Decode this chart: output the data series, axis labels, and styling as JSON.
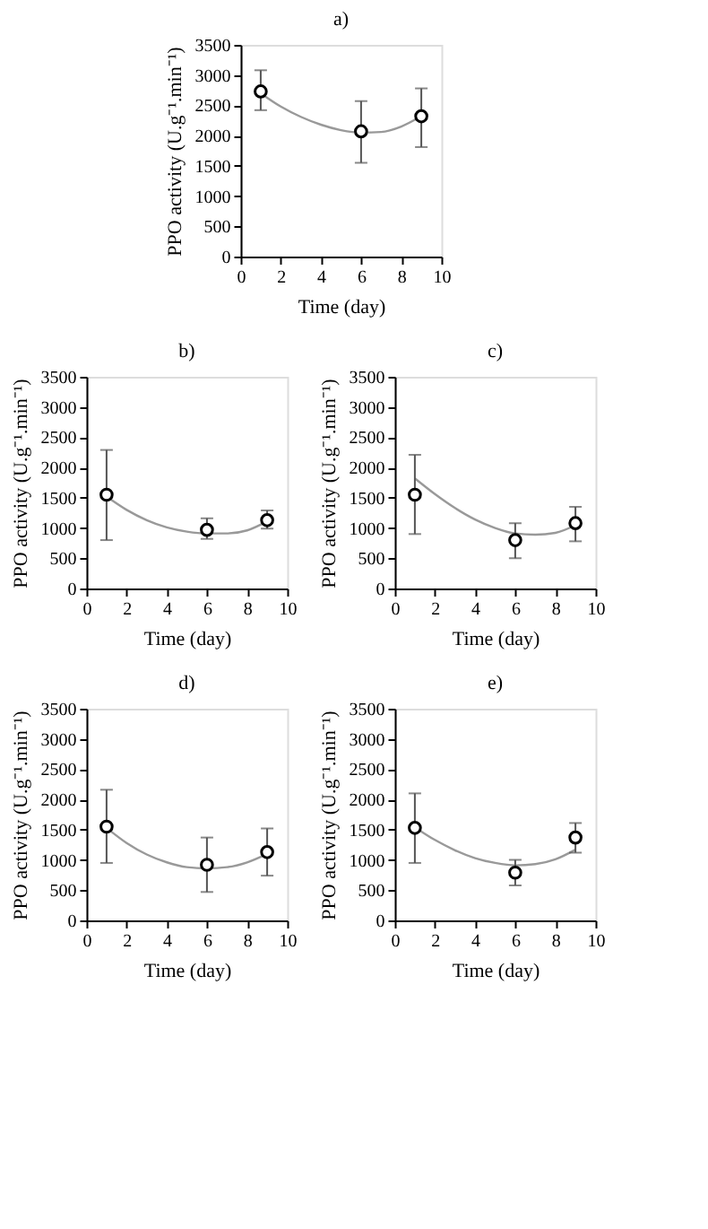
{
  "chart_data": [
    {
      "type": "scatter",
      "title": "a)",
      "xlabel": "Time (day)",
      "ylabel": "PPO activity (U.g⁻¹.min⁻¹)",
      "xlim": [
        0,
        10
      ],
      "xticks": [
        0,
        2,
        4,
        6,
        8,
        10
      ],
      "ylim": [
        0,
        3500
      ],
      "yticks": [
        0,
        500,
        1000,
        1500,
        2000,
        2500,
        3000,
        3500
      ],
      "grid": false,
      "marker": "circle",
      "series": [
        {
          "color": "#000000",
          "x": [
            1,
            6,
            9
          ],
          "values": [
            2730,
            2070,
            2320
          ],
          "errors": [
            [
              2420,
              3080
            ],
            [
              1550,
              2570
            ],
            [
              1810,
              2780
            ]
          ]
        },
        {
          "type": "line",
          "color": "#999999",
          "marker": "none",
          "line_style": "solid",
          "x": [
            1,
            2,
            3,
            4,
            5,
            6,
            7,
            8,
            9
          ],
          "values": [
            2700,
            2480,
            2310,
            2180,
            2090,
            2050,
            2060,
            2150,
            2320
          ]
        }
      ]
    },
    {
      "type": "scatter",
      "title": "b)",
      "xlabel": "Time (day)",
      "ylabel": "PPO activity (U.g⁻¹.min⁻¹)",
      "xlim": [
        0,
        10
      ],
      "xticks": [
        0,
        2,
        4,
        6,
        8,
        10
      ],
      "ylim": [
        0,
        3500
      ],
      "yticks": [
        0,
        500,
        1000,
        1500,
        2000,
        2500,
        3000,
        3500
      ],
      "grid": false,
      "marker": "circle",
      "series": [
        {
          "color": "#000000",
          "x": [
            1,
            6,
            9
          ],
          "values": [
            1550,
            970,
            1130
          ],
          "errors": [
            [
              800,
              2290
            ],
            [
              820,
              1160
            ],
            [
              990,
              1290
            ]
          ]
        },
        {
          "type": "line",
          "color": "#999999",
          "marker": "none",
          "line_style": "solid",
          "x": [
            1,
            2,
            3,
            4,
            5,
            6,
            7,
            8,
            9
          ],
          "values": [
            1520,
            1300,
            1130,
            1010,
            940,
            910,
            910,
            960,
            1110
          ]
        }
      ]
    },
    {
      "type": "scatter",
      "title": "c)",
      "xlabel": "Time (day)",
      "ylabel": "PPO activity (U.g⁻¹.min⁻¹)",
      "xlim": [
        0,
        10
      ],
      "xticks": [
        0,
        2,
        4,
        6,
        8,
        10
      ],
      "ylim": [
        0,
        3500
      ],
      "yticks": [
        0,
        500,
        1000,
        1500,
        2000,
        2500,
        3000,
        3500
      ],
      "grid": false,
      "marker": "circle",
      "series": [
        {
          "color": "#000000",
          "x": [
            1,
            6,
            9
          ],
          "values": [
            1550,
            800,
            1080
          ],
          "errors": [
            [
              900,
              2210
            ],
            [
              500,
              1080
            ],
            [
              780,
              1350
            ]
          ]
        },
        {
          "type": "line",
          "color": "#999999",
          "marker": "none",
          "line_style": "solid",
          "x": [
            1,
            2,
            3,
            4,
            5,
            6,
            7,
            8,
            9
          ],
          "values": [
            1820,
            1560,
            1330,
            1140,
            1000,
            910,
            890,
            920,
            1050
          ]
        }
      ]
    },
    {
      "type": "scatter",
      "title": "d)",
      "xlabel": "Time (day)",
      "ylabel": "PPO activity (U.g⁻¹.min⁻¹)",
      "xlim": [
        0,
        10
      ],
      "xticks": [
        0,
        2,
        4,
        6,
        8,
        10
      ],
      "ylim": [
        0,
        3500
      ],
      "yticks": [
        0,
        500,
        1000,
        1500,
        2000,
        2500,
        3000,
        3500
      ],
      "grid": false,
      "marker": "circle",
      "series": [
        {
          "color": "#000000",
          "x": [
            1,
            6,
            9
          ],
          "values": [
            1550,
            920,
            1130
          ],
          "errors": [
            [
              950,
              2160
            ],
            [
              470,
              1370
            ],
            [
              740,
              1520
            ]
          ]
        },
        {
          "type": "line",
          "color": "#999999",
          "marker": "none",
          "line_style": "solid",
          "x": [
            1,
            2,
            3,
            4,
            5,
            6,
            7,
            8,
            9
          ],
          "values": [
            1530,
            1280,
            1090,
            960,
            880,
            860,
            880,
            960,
            1100
          ]
        }
      ]
    },
    {
      "type": "scatter",
      "title": "e)",
      "xlabel": "Time (day)",
      "ylabel": "PPO activity (U.g⁻¹.min⁻¹)",
      "xlim": [
        0,
        10
      ],
      "xticks": [
        0,
        2,
        4,
        6,
        8,
        10
      ],
      "ylim": [
        0,
        3500
      ],
      "yticks": [
        0,
        500,
        1000,
        1500,
        2000,
        2500,
        3000,
        3500
      ],
      "grid": false,
      "marker": "circle",
      "series": [
        {
          "color": "#000000",
          "x": [
            1,
            6,
            9
          ],
          "values": [
            1530,
            790,
            1370
          ],
          "errors": [
            [
              950,
              2100
            ],
            [
              580,
              1000
            ],
            [
              1120,
              1610
            ]
          ]
        },
        {
          "type": "line",
          "color": "#999999",
          "marker": "none",
          "line_style": "solid",
          "x": [
            1,
            2,
            3,
            4,
            5,
            6,
            7,
            8,
            9
          ],
          "values": [
            1540,
            1330,
            1160,
            1030,
            950,
            910,
            930,
            1010,
            1170
          ]
        }
      ]
    }
  ]
}
